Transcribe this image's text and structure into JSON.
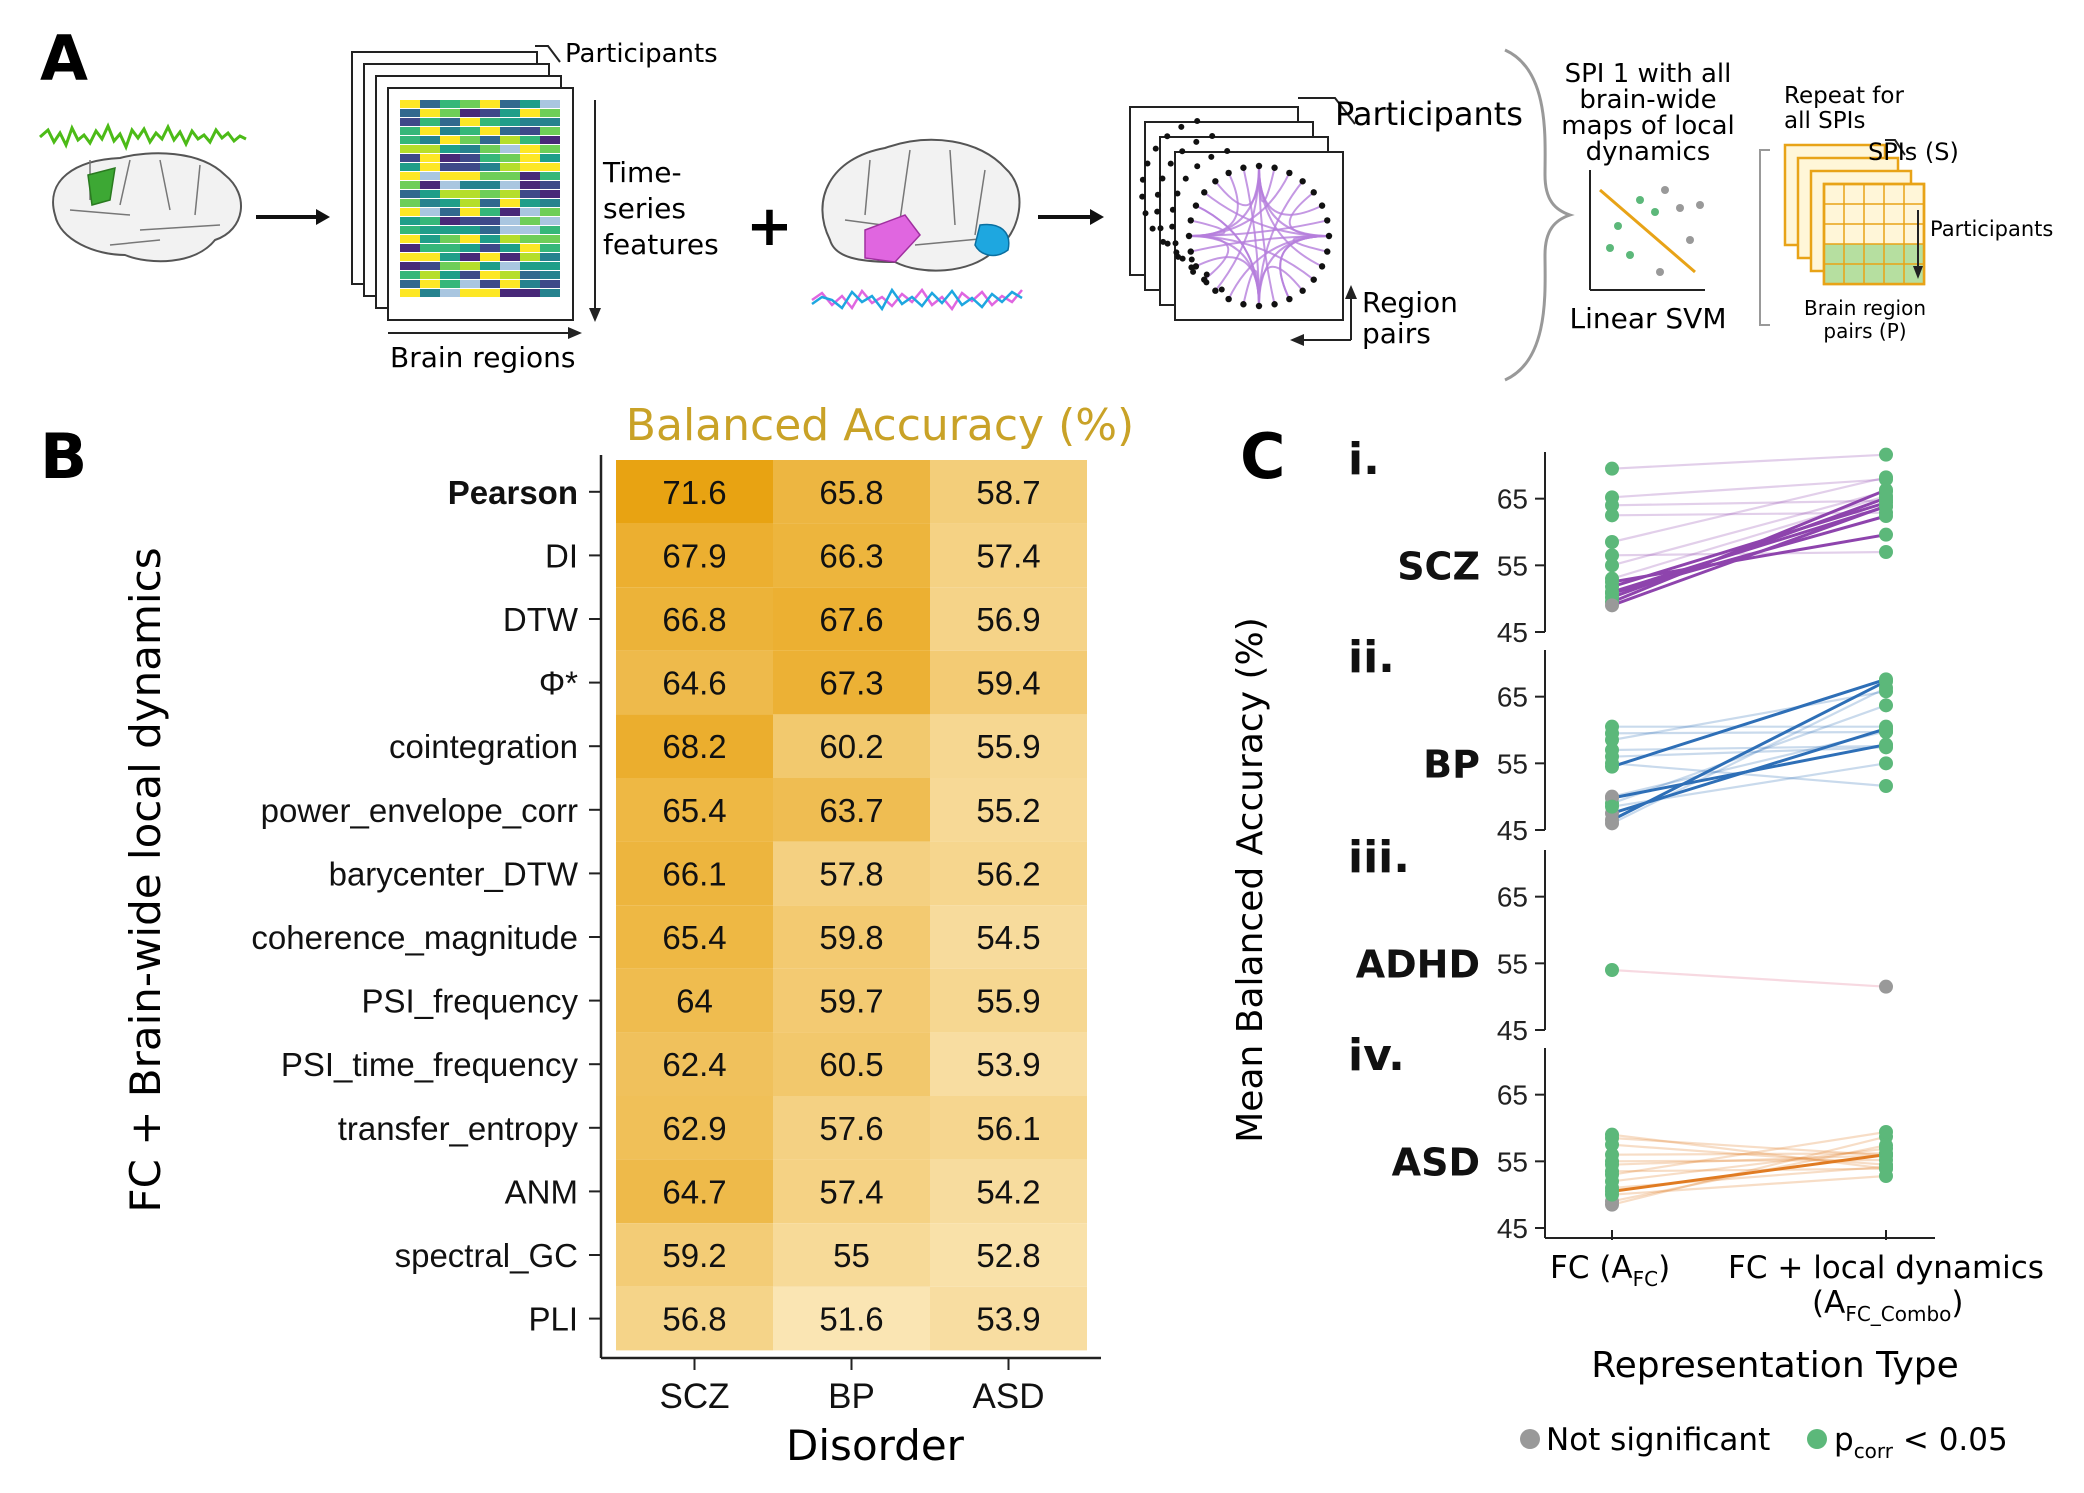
{
  "panelA": {
    "letter": "A",
    "stack1_participants": "Participants",
    "stack1_rows_label": [
      "Time-",
      "series",
      "features"
    ],
    "stack1_cols_label": "Brain regions",
    "plus": "+",
    "stack2_participants": "Participants",
    "stack2_pairs_label": [
      "Region",
      "pairs"
    ],
    "svm_title": [
      "SPI 1 with all",
      "brain-wide",
      "maps of local",
      "dynamics"
    ],
    "svm_label": "Linear SVM",
    "repeat_label": [
      "Repeat for",
      "all SPIs"
    ],
    "spis_label": "SPIs (S)",
    "participants_label": "Participants",
    "pairs_label": [
      "Brain region",
      "pairs (P)"
    ],
    "colors": {
      "green_signal": "#4cbb17",
      "pink": "#e066e0",
      "blue": "#1ea7e0",
      "purple_arc": "#b57edc",
      "orange": "#e8a317",
      "grid_green": "#b6dfa0"
    }
  },
  "panelB": {
    "letter": "B",
    "chart_data": {
      "type": "heatmap",
      "title": "Balanced Accuracy (%)",
      "xlabel": "Disorder",
      "ylabel": "FC + Brain-wide local dynamics",
      "columns": [
        "SCZ",
        "BP",
        "ASD"
      ],
      "rows": [
        "Pearson",
        "DI",
        "DTW",
        "Φ*",
        "cointegration",
        "power_envelope_corr",
        "barycenter_DTW",
        "coherence_magnitude",
        "PSI_frequency",
        "PSI_time_frequency",
        "transfer_entropy",
        "ANM",
        "spectral_GC",
        "PLI"
      ],
      "bold_rows": [
        "Pearson"
      ],
      "values": [
        [
          "71.6",
          "65.8",
          "58.7"
        ],
        [
          "67.9",
          "66.3",
          "57.4"
        ],
        [
          "66.8",
          "67.6",
          "56.9"
        ],
        [
          "64.6",
          "67.3",
          "59.4"
        ],
        [
          "68.2",
          "60.2",
          "55.9"
        ],
        [
          "65.4",
          "63.7",
          "55.2"
        ],
        [
          "66.1",
          "57.8",
          "56.2"
        ],
        [
          "65.4",
          "59.8",
          "54.5"
        ],
        [
          "64",
          "59.7",
          "55.9"
        ],
        [
          "62.4",
          "60.5",
          "53.9"
        ],
        [
          "62.9",
          "57.6",
          "56.1"
        ],
        [
          "64.7",
          "57.4",
          "54.2"
        ],
        [
          "59.2",
          "55",
          "52.8"
        ],
        [
          "56.8",
          "51.6",
          "53.9"
        ]
      ],
      "color_low": "#fbeac0",
      "color_high": "#e8a20f",
      "title_color": "#c9a227"
    }
  },
  "panelC": {
    "letter": "C",
    "chart_data": {
      "type": "line",
      "ylabel": "Mean Balanced Accuracy (%)",
      "xlabel": "Representation Type",
      "x_categories": [
        "FC (A_FC)",
        "FC + local dynamics (A_FC_Combo)"
      ],
      "x_tick1_main": "FC (A",
      "x_tick1_sub": "FC",
      "x_tick1_end": ")",
      "x_tick2_line1": "FC + local dynamics",
      "x_tick2_main": "(A",
      "x_tick2_sub": "FC_Combo",
      "x_tick2_end": ")",
      "ylim": [
        45,
        72
      ],
      "yticks": [
        "65",
        "55",
        "45"
      ],
      "subpanels": [
        {
          "roman": "i.",
          "name": "SCZ",
          "color": "#8e44ad",
          "pairs": [
            [
              49.5,
              66.3,
              1,
              1,
              1
            ],
            [
              50.2,
              65.1,
              1,
              1,
              1
            ],
            [
              51.0,
              63.8,
              1,
              1,
              1
            ],
            [
              51.8,
              64.4,
              1,
              1,
              1
            ],
            [
              50.8,
              62.4,
              1,
              1,
              1
            ],
            [
              52.5,
              59.6,
              1,
              1,
              1
            ],
            [
              49.0,
              63.9,
              0,
              1,
              1
            ],
            [
              53.0,
              65.4,
              1,
              1,
              0
            ],
            [
              55.0,
              66.1,
              1,
              1,
              0
            ],
            [
              58.5,
              68.2,
              1,
              1,
              0
            ],
            [
              64.0,
              64.7,
              1,
              1,
              0
            ],
            [
              65.2,
              67.9,
              1,
              1,
              0
            ],
            [
              69.5,
              71.6,
              1,
              1,
              0
            ],
            [
              62.5,
              62.9,
              1,
              1,
              0
            ],
            [
              56.5,
              57.0,
              1,
              1,
              0
            ]
          ]
        },
        {
          "roman": "ii.",
          "name": "BP",
          "color": "#2e6fb7",
          "pairs": [
            [
              46.5,
              67.3,
              0,
              1,
              1
            ],
            [
              47.5,
              60.2,
              0,
              1,
              1
            ],
            [
              49.8,
              57.8,
              0,
              1,
              1
            ],
            [
              54.5,
              67.6,
              1,
              1,
              1
            ],
            [
              46.0,
              66.3,
              0,
              1,
              0
            ],
            [
              49.0,
              63.7,
              1,
              1,
              0
            ],
            [
              50.0,
              59.8,
              0,
              1,
              0
            ],
            [
              58.5,
              65.8,
              1,
              1,
              0
            ],
            [
              59.5,
              59.7,
              1,
              1,
              0
            ],
            [
              60.5,
              60.5,
              1,
              1,
              0
            ],
            [
              57.0,
              57.6,
              1,
              1,
              0
            ],
            [
              56.0,
              57.4,
              1,
              1,
              0
            ],
            [
              48.5,
              55.0,
              1,
              1,
              0
            ],
            [
              55.0,
              51.6,
              1,
              1,
              0
            ]
          ]
        },
        {
          "roman": "iii.",
          "name": "ADHD",
          "color": "#e06a8a",
          "pairs": [
            [
              54.0,
              51.5,
              1,
              0,
              0
            ]
          ]
        },
        {
          "roman": "iv.",
          "name": "ASD",
          "color": "#e07b22",
          "pairs": [
            [
              50.5,
              56.0,
              1,
              1,
              1
            ],
            [
              48.5,
              58.7,
              0,
              1,
              0
            ],
            [
              49.0,
              57.4,
              0,
              1,
              0
            ],
            [
              52.0,
              56.9,
              1,
              1,
              0
            ],
            [
              53.0,
              59.4,
              1,
              1,
              0
            ],
            [
              54.5,
              55.9,
              1,
              1,
              0
            ],
            [
              55.0,
              55.2,
              1,
              1,
              0
            ],
            [
              56.0,
              56.2,
              1,
              1,
              0
            ],
            [
              57.5,
              54.5,
              1,
              1,
              0
            ],
            [
              58.5,
              55.9,
              1,
              1,
              0
            ],
            [
              59.0,
              53.9,
              1,
              1,
              0
            ],
            [
              51.0,
              54.2,
              1,
              1,
              0
            ],
            [
              50.0,
              52.8,
              1,
              1,
              0
            ],
            [
              53.5,
              53.9,
              1,
              1,
              0
            ]
          ]
        }
      ],
      "legend": [
        {
          "label": "Not significant",
          "color": "#999999"
        },
        {
          "label_main": "p",
          "label_sub": "corr",
          "label_end": " < 0.05",
          "color": "#5cb87a"
        }
      ]
    }
  }
}
